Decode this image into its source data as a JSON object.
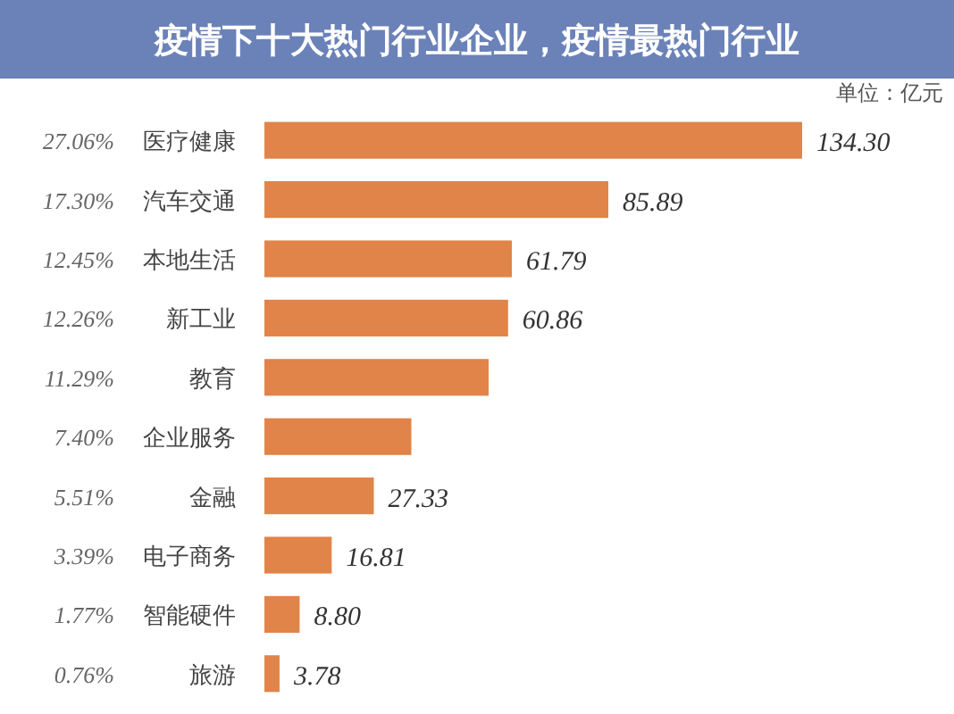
{
  "chart_data": {
    "type": "bar",
    "orientation": "horizontal",
    "title": "疫情下十大热门行业企业，疫情最热门行业",
    "categories": [
      "医疗健康",
      "汽车交通",
      "本地生活",
      "新工业",
      "教育",
      "企业服务",
      "金融",
      "电子商务",
      "智能硬件",
      "旅游"
    ],
    "values": [
      134.3,
      85.89,
      61.79,
      60.86,
      56.0,
      36.7,
      27.33,
      16.81,
      8.8,
      3.78
    ],
    "value_labels": [
      "134.30",
      "85.89",
      "61.79",
      "60.86",
      null,
      null,
      "27.33",
      "16.81",
      "8.80",
      "3.78"
    ],
    "color": "#e08449",
    "annotations": [
      "单位：亿元",
      "27.06%",
      "17.30%",
      "12.45%",
      "12.26%",
      "11.29%",
      "7.40%",
      "5.51%",
      "3.39%",
      "1.77%",
      "0.76%"
    ]
  }
}
